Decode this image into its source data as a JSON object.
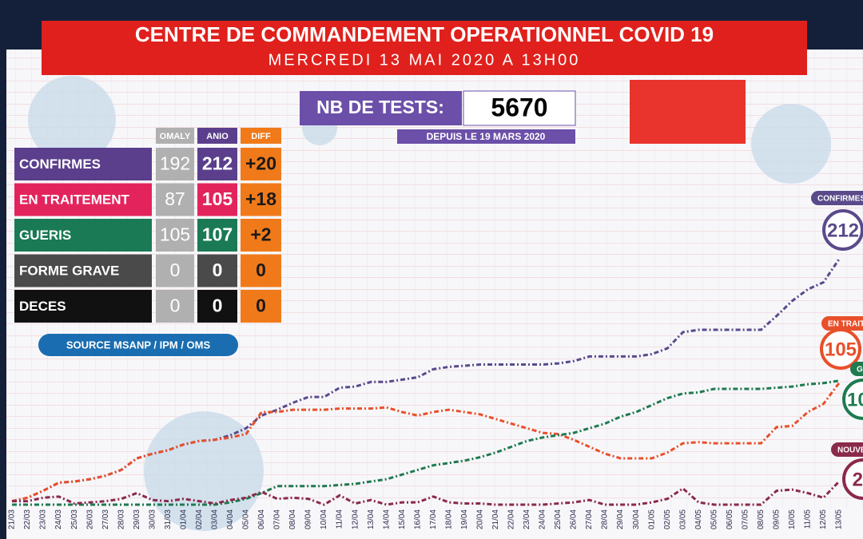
{
  "header": {
    "title": "CENTRE DE COMMANDEMENT OPERATIONNEL COVID 19",
    "subtitle": "MERCREDI 13 MAI 2020 A 13H00"
  },
  "tests": {
    "label": "NB DE TESTS:",
    "value": "5670",
    "since": "DEPUIS LE 19 MARS 2020"
  },
  "table": {
    "columns": [
      "OMALY",
      "ANIO",
      "DIFF"
    ],
    "rows": [
      [
        "CONFIRMES",
        "192",
        "212",
        "+20"
      ],
      [
        "EN TRAITEMENT",
        "87",
        "105",
        "+18"
      ],
      [
        "GUERIS",
        "105",
        "107",
        "+2"
      ],
      [
        "FORME GRAVE",
        "0",
        "0",
        "0"
      ],
      [
        "DECES",
        "0",
        "0",
        "0"
      ]
    ]
  },
  "source": "SOURCE MSANP / IPM / OMS",
  "chart_data": {
    "type": "line",
    "categories": [
      "21/03",
      "22/03",
      "23/03",
      "24/03",
      "25/03",
      "26/03",
      "27/03",
      "28/03",
      "29/03",
      "30/03",
      "31/03",
      "01/04",
      "02/04",
      "03/04",
      "04/04",
      "05/04",
      "06/04",
      "07/04",
      "08/04",
      "09/04",
      "10/04",
      "11/04",
      "12/04",
      "13/04",
      "14/04",
      "15/04",
      "16/04",
      "17/04",
      "18/04",
      "19/04",
      "20/04",
      "21/04",
      "22/04",
      "23/04",
      "24/04",
      "25/04",
      "26/04",
      "27/04",
      "28/04",
      "29/04",
      "30/04",
      "01/05",
      "02/05",
      "03/05",
      "04/05",
      "05/05",
      "06/05",
      "07/05",
      "08/05",
      "09/05",
      "10/05",
      "11/05",
      "12/05",
      "13/05"
    ],
    "ylim": [
      0,
      400
    ],
    "series": [
      {
        "name": "CONFIRMES",
        "color": "#5a4a8a",
        "values": [
          3,
          6,
          12,
          19,
          20,
          22,
          25,
          30,
          40,
          44,
          47,
          52,
          55,
          56,
          60,
          66,
          77,
          82,
          88,
          93,
          93,
          101,
          102,
          106,
          106,
          108,
          110,
          117,
          119,
          120,
          121,
          121,
          121,
          121,
          121,
          122,
          124,
          128,
          128,
          128,
          128,
          130,
          135,
          149,
          151,
          151,
          151,
          151,
          151,
          163,
          176,
          186,
          192,
          212
        ]
      },
      {
        "name": "EN TRAITEMENT",
        "color": "#e8502a",
        "values": [
          3,
          6,
          12,
          19,
          20,
          22,
          25,
          30,
          40,
          44,
          47,
          52,
          55,
          56,
          58,
          61,
          80,
          80,
          82,
          82,
          82,
          83,
          83,
          83,
          84,
          80,
          77,
          80,
          82,
          80,
          78,
          74,
          70,
          66,
          62,
          61,
          56,
          50,
          44,
          40,
          40,
          40,
          45,
          53,
          54,
          53,
          53,
          53,
          53,
          67,
          68,
          80,
          87,
          105
        ]
      },
      {
        "name": "GUERIS",
        "color": "#1f7a50",
        "values": [
          0,
          0,
          0,
          0,
          0,
          0,
          0,
          0,
          0,
          0,
          0,
          0,
          0,
          0,
          2,
          5,
          10,
          16,
          16,
          16,
          16,
          17,
          18,
          20,
          22,
          26,
          30,
          34,
          36,
          38,
          41,
          45,
          50,
          55,
          58,
          60,
          62,
          66,
          70,
          76,
          80,
          86,
          92,
          96,
          97,
          100,
          100,
          100,
          100,
          101,
          102,
          104,
          105,
          107
        ]
      },
      {
        "name": "NOUVEAUX",
        "color": "#8a2a4a",
        "values": [
          3,
          3,
          6,
          7,
          1,
          2,
          3,
          5,
          10,
          4,
          3,
          5,
          3,
          1,
          4,
          6,
          11,
          5,
          6,
          5,
          0,
          8,
          1,
          4,
          0,
          2,
          2,
          7,
          2,
          1,
          1,
          0,
          0,
          0,
          0,
          1,
          2,
          4,
          0,
          0,
          0,
          2,
          5,
          14,
          2,
          0,
          0,
          0,
          0,
          12,
          13,
          10,
          6,
          20
        ]
      }
    ]
  }
}
